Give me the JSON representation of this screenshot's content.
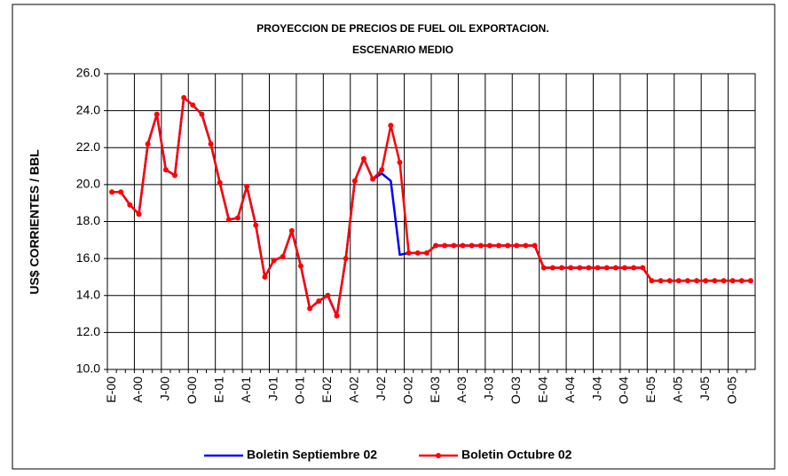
{
  "chart_data": {
    "type": "line",
    "title": "PROYECCION DE PRECIOS DE FUEL OIL EXPORTACION.",
    "subtitle": "ESCENARIO MEDIO",
    "y_label": "US$ CORRIENTES / BBL",
    "categories": [
      "E-00",
      null,
      null,
      "A-00",
      null,
      null,
      "J-00",
      null,
      null,
      "O-00",
      null,
      null,
      "E-01",
      null,
      null,
      "A-01",
      null,
      null,
      "J-01",
      null,
      null,
      "O-01",
      null,
      null,
      "E-02",
      null,
      null,
      "A-02",
      null,
      null,
      "J-02",
      null,
      null,
      "O-02",
      null,
      null,
      "E-03",
      null,
      null,
      "A-03",
      null,
      null,
      "J-03",
      null,
      null,
      "O-03",
      null,
      null,
      "E-04",
      null,
      null,
      "A-04",
      null,
      null,
      "J-04",
      null,
      null,
      "O-04",
      null,
      null,
      "E-05",
      null,
      null,
      "A-05",
      null,
      null,
      "J-05",
      null,
      null,
      "O-05",
      null,
      null
    ],
    "series": [
      {
        "name": "Boletin Septiembre 02",
        "color": "#0000ff",
        "marker": false,
        "values": [
          19.6,
          19.6,
          18.9,
          18.4,
          22.2,
          23.8,
          20.8,
          20.5,
          24.7,
          24.3,
          23.8,
          22.2,
          20.1,
          18.1,
          18.2,
          19.9,
          17.8,
          15.0,
          15.9,
          16.1,
          17.5,
          15.6,
          13.3,
          13.7,
          14.0,
          12.9,
          16.0,
          20.2,
          21.4,
          20.3,
          20.6,
          20.2,
          16.2,
          16.3,
          16.3,
          16.3,
          16.7,
          16.7,
          16.7,
          16.7,
          16.7,
          16.7,
          16.7,
          16.7,
          16.7,
          16.7,
          16.7,
          16.7,
          15.5,
          15.5,
          15.5,
          15.5,
          15.5,
          15.5,
          15.5,
          15.5,
          15.5,
          15.5,
          15.5,
          15.5,
          14.8,
          14.8,
          14.8,
          14.8,
          14.8,
          14.8,
          14.8,
          14.8,
          14.8,
          14.8,
          14.8,
          14.8
        ]
      },
      {
        "name": "Boletin Octubre 02",
        "color": "#ff0000",
        "marker": true,
        "values": [
          19.6,
          19.6,
          18.9,
          18.4,
          22.2,
          23.8,
          20.8,
          20.5,
          24.7,
          24.3,
          23.8,
          22.2,
          20.1,
          18.1,
          18.2,
          19.9,
          17.8,
          15.0,
          15.9,
          16.1,
          17.5,
          15.6,
          13.3,
          13.7,
          14.0,
          12.9,
          16.0,
          20.2,
          21.4,
          20.3,
          20.8,
          23.2,
          21.2,
          16.3,
          16.3,
          16.3,
          16.7,
          16.7,
          16.7,
          16.7,
          16.7,
          16.7,
          16.7,
          16.7,
          16.7,
          16.7,
          16.7,
          16.7,
          15.5,
          15.5,
          15.5,
          15.5,
          15.5,
          15.5,
          15.5,
          15.5,
          15.5,
          15.5,
          15.5,
          15.5,
          14.8,
          14.8,
          14.8,
          14.8,
          14.8,
          14.8,
          14.8,
          14.8,
          14.8,
          14.8,
          14.8,
          14.8
        ]
      }
    ],
    "ylim": [
      10,
      26
    ],
    "yticks": [
      {
        "value": 10,
        "label": "10.0"
      },
      {
        "value": 12,
        "label": "12.0"
      },
      {
        "value": 14,
        "label": "14.0"
      },
      {
        "value": 16,
        "label": "16.0"
      },
      {
        "value": 18,
        "label": "18.0"
      },
      {
        "value": 20,
        "label": "20.0"
      },
      {
        "value": 22,
        "label": "22.0"
      },
      {
        "value": 24,
        "label": "24.0"
      },
      {
        "value": 26,
        "label": "26.0"
      }
    ],
    "grid": true
  }
}
